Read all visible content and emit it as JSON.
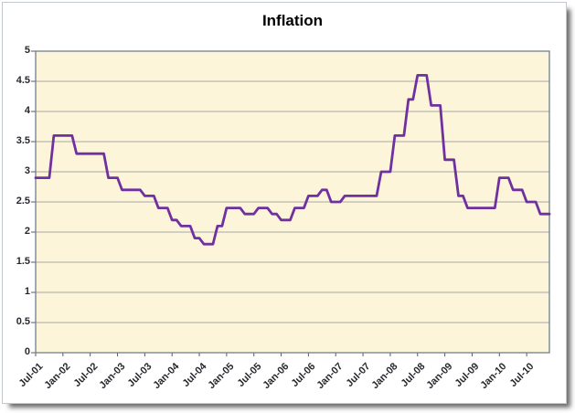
{
  "chart_data": {
    "type": "line",
    "title": "Inflation",
    "xlabel": "",
    "ylabel": "",
    "ylim": [
      0,
      5
    ],
    "y_step": 0.5,
    "grid": "horizontal-only",
    "legend": "none",
    "frequency": "monthly",
    "x_start_month": "Jul-2001",
    "x_end_month": "Dec-2010",
    "x_tick_labels": [
      "Jul-01",
      "Jan-02",
      "Jul-02",
      "Jan-03",
      "Jul-03",
      "Jan-04",
      "Jul-04",
      "Jan-05",
      "Jul-05",
      "Jan-06",
      "Jul-06",
      "Jan-07",
      "Jul-07",
      "Jan-08",
      "Jul-08",
      "Jan-09",
      "Jul-09",
      "Jan-10",
      "Jul-10"
    ],
    "x_tick_month_step": 6,
    "y_tick_labels": [
      "0",
      "0.5",
      "1",
      "1.5",
      "2",
      "2.5",
      "3",
      "3.5",
      "4",
      "4.5",
      "5"
    ],
    "series": [
      {
        "name": "Inflation",
        "values": [
          2.9,
          2.9,
          2.9,
          2.9,
          3.6,
          3.6,
          3.6,
          3.6,
          3.6,
          3.3,
          3.3,
          3.3,
          3.3,
          3.3,
          3.3,
          3.3,
          2.9,
          2.9,
          2.9,
          2.7,
          2.7,
          2.7,
          2.7,
          2.7,
          2.6,
          2.6,
          2.6,
          2.4,
          2.4,
          2.4,
          2.2,
          2.2,
          2.1,
          2.1,
          2.1,
          1.9,
          1.9,
          1.8,
          1.8,
          1.8,
          2.1,
          2.1,
          2.4,
          2.4,
          2.4,
          2.4,
          2.3,
          2.3,
          2.3,
          2.4,
          2.4,
          2.4,
          2.3,
          2.3,
          2.2,
          2.2,
          2.2,
          2.4,
          2.4,
          2.4,
          2.6,
          2.6,
          2.6,
          2.7,
          2.7,
          2.5,
          2.5,
          2.5,
          2.6,
          2.6,
          2.6,
          2.6,
          2.6,
          2.6,
          2.6,
          2.6,
          3.0,
          3.0,
          3.0,
          3.6,
          3.6,
          3.6,
          4.2,
          4.2,
          4.6,
          4.6,
          4.6,
          4.1,
          4.1,
          4.1,
          3.2,
          3.2,
          3.2,
          2.6,
          2.6,
          2.4,
          2.4,
          2.4,
          2.4,
          2.4,
          2.4,
          2.4,
          2.9,
          2.9,
          2.9,
          2.7,
          2.7,
          2.7,
          2.5,
          2.5,
          2.5,
          2.3,
          2.3,
          2.3
        ]
      }
    ]
  },
  "colors": {
    "series_line": "#7030A0",
    "plot_background": "#FDF5DA",
    "gridline": "#A6A6A6",
    "plot_border": "#6E7F8F",
    "tick": "#5A5A5A",
    "label_text": "#26282D",
    "title_text": "#000000",
    "canvas_background": "#FFFFFF"
  }
}
